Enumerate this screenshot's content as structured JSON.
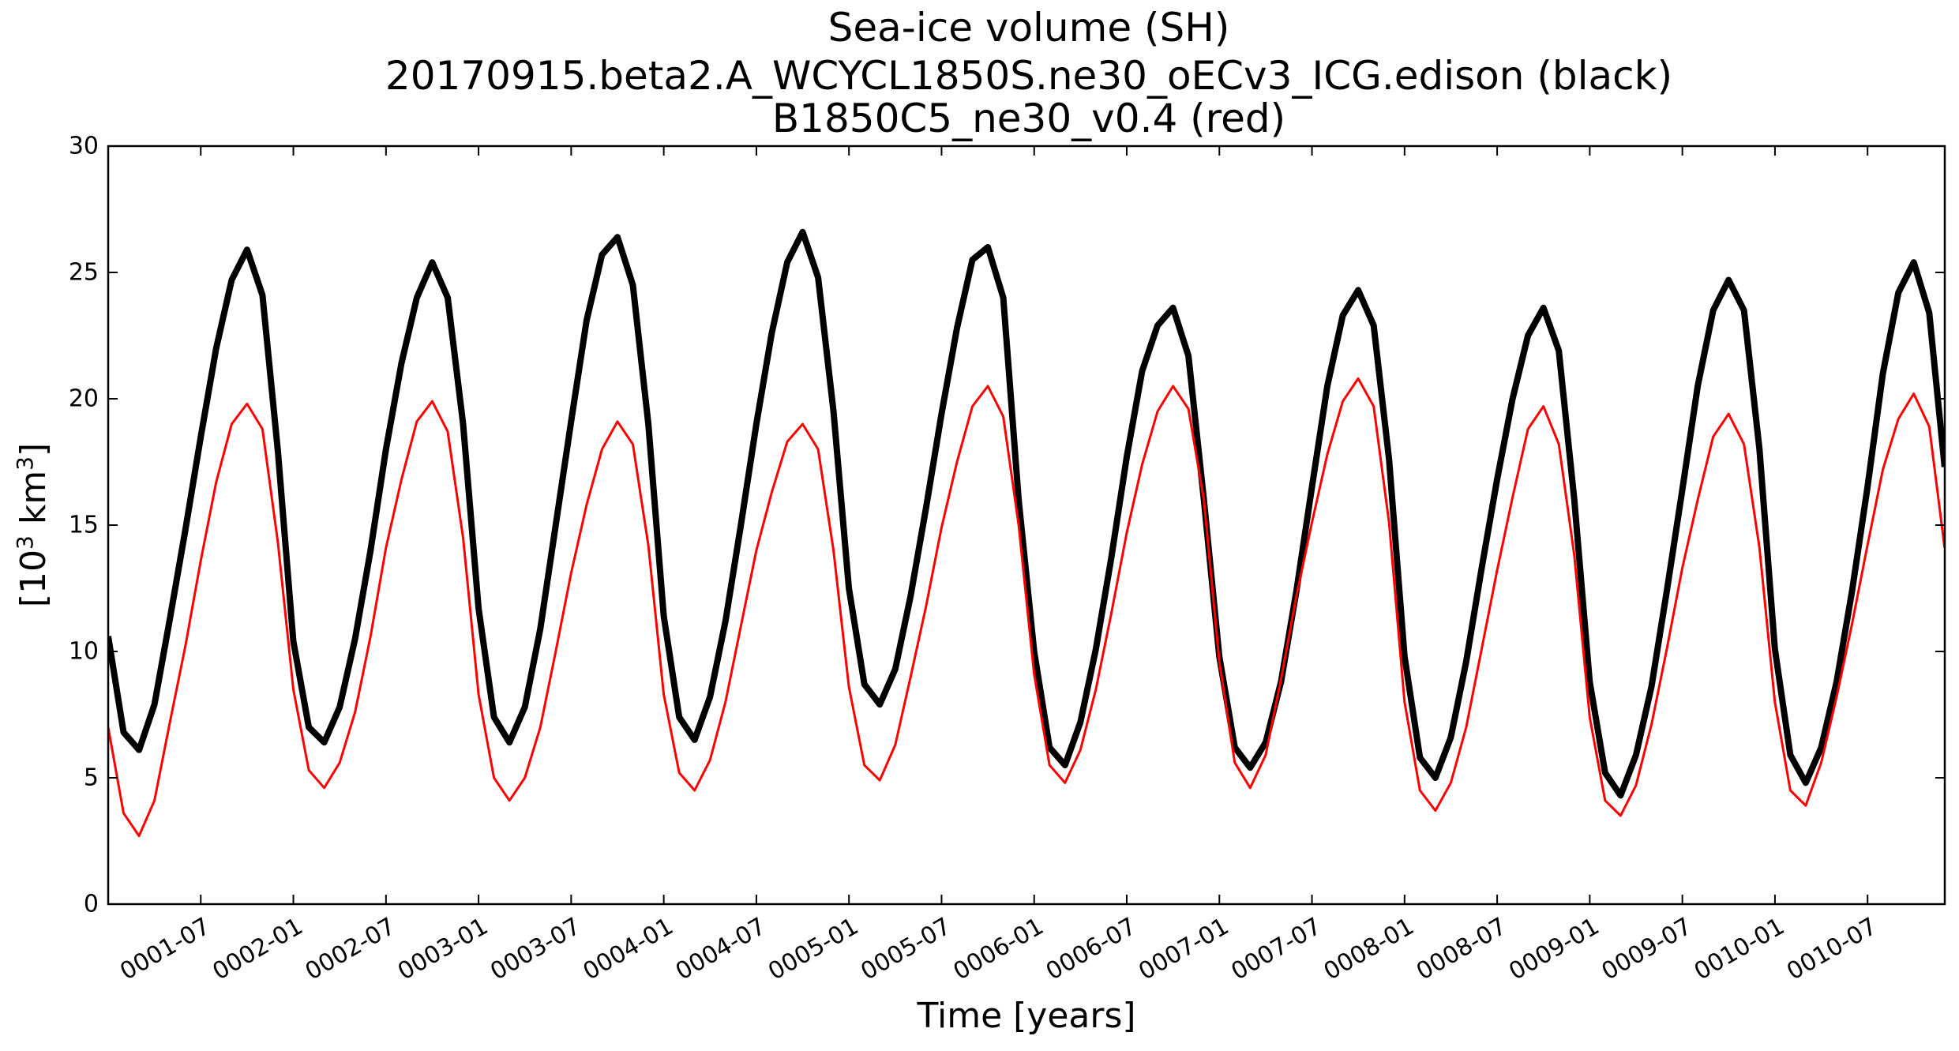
{
  "chart_data": {
    "type": "line",
    "title": [
      "Sea-ice volume (SH)",
      "20170915.beta2.A_WCYCL1850S.ne30_oECv3_ICG.edison (black)",
      "B1850C5_ne30_v0.4 (red)"
    ],
    "xlabel": "Time [years]",
    "ylabel_main": "[10",
    "ylabel_sup1": "3",
    "ylabel_mid": " km",
    "ylabel_sup2": "3",
    "ylabel_end": "]",
    "ylim": [
      0,
      30
    ],
    "yticks": [
      0,
      5,
      10,
      15,
      20,
      25,
      30
    ],
    "ytick_labels": [
      "0",
      "5",
      "10",
      "15",
      "20",
      "25",
      "30"
    ],
    "xlim": [
      1.0,
      10.917
    ],
    "xticks": [
      1.5,
      2.0,
      2.5,
      3.0,
      3.5,
      4.0,
      4.5,
      5.0,
      5.5,
      6.0,
      6.5,
      7.0,
      7.5,
      8.0,
      8.5,
      9.0,
      9.5,
      10.0,
      10.5
    ],
    "xtick_labels": [
      "0001-07",
      "0002-01",
      "0002-07",
      "0003-01",
      "0003-07",
      "0004-01",
      "0004-07",
      "0005-01",
      "0005-07",
      "0006-01",
      "0006-07",
      "0007-01",
      "0007-07",
      "0008-01",
      "0008-07",
      "0009-01",
      "0009-07",
      "0010-01",
      "0010-07"
    ],
    "grid": false,
    "series": [
      {
        "color": "#000000",
        "linewidth": "thick",
        "x_start": 1.0,
        "x_step": 0.08333,
        "values": [
          10.6,
          6.8,
          6.1,
          7.9,
          11.3,
          14.8,
          18.5,
          22.0,
          24.7,
          25.9,
          24.1,
          17.9,
          10.4,
          7.0,
          6.4,
          7.8,
          10.5,
          14.0,
          18.0,
          21.4,
          24.0,
          25.4,
          24.0,
          19.0,
          11.7,
          7.4,
          6.4,
          7.8,
          10.9,
          15.0,
          19.1,
          23.1,
          25.7,
          26.4,
          24.5,
          19.0,
          11.4,
          7.4,
          6.5,
          8.2,
          11.2,
          15.0,
          19.0,
          22.6,
          25.4,
          26.6,
          24.8,
          19.5,
          12.5,
          8.7,
          7.9,
          9.3,
          12.2,
          15.7,
          19.4,
          22.8,
          25.5,
          26.0,
          24.0,
          16.0,
          10.0,
          6.2,
          5.5,
          7.2,
          10.1,
          13.7,
          17.7,
          21.1,
          22.9,
          23.6,
          21.7,
          16.0,
          9.8,
          6.2,
          5.4,
          6.4,
          8.8,
          12.4,
          16.5,
          20.5,
          23.3,
          24.3,
          22.9,
          17.6,
          9.8,
          5.8,
          5.0,
          6.6,
          9.6,
          13.3,
          16.8,
          20.0,
          22.5,
          23.6,
          21.9,
          16.0,
          8.8,
          5.2,
          4.3,
          5.9,
          8.6,
          12.4,
          16.4,
          20.5,
          23.5,
          24.7,
          23.5,
          18.0,
          10.1,
          5.9,
          4.8,
          6.2,
          8.8,
          12.4,
          16.5,
          21.0,
          24.2,
          25.4,
          23.4,
          17.3
        ]
      },
      {
        "color": "#ff0000",
        "linewidth": "thin",
        "x_start": 1.0,
        "x_step": 0.08333,
        "values": [
          7.0,
          3.6,
          2.7,
          4.1,
          7.2,
          10.2,
          13.6,
          16.7,
          19.0,
          19.8,
          18.8,
          14.3,
          8.5,
          5.3,
          4.6,
          5.6,
          7.6,
          10.6,
          14.1,
          16.8,
          19.1,
          19.9,
          18.7,
          14.5,
          8.3,
          5.0,
          4.1,
          5.0,
          7.0,
          10.0,
          13.1,
          15.8,
          18.0,
          19.1,
          18.2,
          14.2,
          8.3,
          5.2,
          4.5,
          5.7,
          8.0,
          11.0,
          14.0,
          16.3,
          18.3,
          19.0,
          18.0,
          14.0,
          8.6,
          5.5,
          4.9,
          6.3,
          9.0,
          11.8,
          14.9,
          17.5,
          19.7,
          20.5,
          19.3,
          15.0,
          9.1,
          5.5,
          4.8,
          6.1,
          8.5,
          11.5,
          14.7,
          17.4,
          19.5,
          20.5,
          19.6,
          16.0,
          9.6,
          5.6,
          4.6,
          5.9,
          8.9,
          12.2,
          15.1,
          17.8,
          19.9,
          20.8,
          19.7,
          15.1,
          8.0,
          4.5,
          3.7,
          4.8,
          7.0,
          10.1,
          13.2,
          16.1,
          18.8,
          19.7,
          18.2,
          13.8,
          7.4,
          4.1,
          3.5,
          4.7,
          7.1,
          10.1,
          13.3,
          16.0,
          18.5,
          19.4,
          18.2,
          14.1,
          8.0,
          4.5,
          3.9,
          5.6,
          8.2,
          11.1,
          14.2,
          17.2,
          19.2,
          20.2,
          18.9,
          14.1
        ]
      }
    ]
  }
}
